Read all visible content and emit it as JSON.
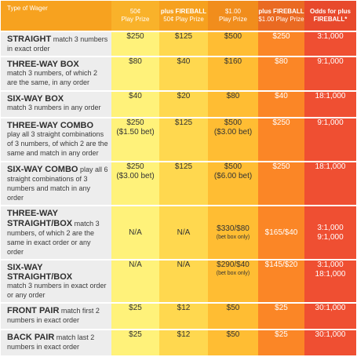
{
  "header": {
    "wager_type": "Type of Wager",
    "col1_line1": "50¢",
    "col1_line2": "Play Prize",
    "col2_line1": "plus FIREBALL",
    "col2_line2": "50¢ Play Prize",
    "col3_line1": "$1.00",
    "col3_line2": "Play Prize",
    "col4_line1": "plus FIREBALL",
    "col4_line2": "$1.00 Play Prize",
    "col5_line1": "Odds for plus",
    "col5_line2": "FIREBALL*"
  },
  "rows": [
    {
      "name": "STRAIGHT",
      "desc": " match 3 numbers in exact order",
      "p1": "$250",
      "p1b": "",
      "p2": "$125",
      "p3": "$500",
      "p3b": "",
      "p4": "$250",
      "odds1": "3:1,000",
      "odds2": ""
    },
    {
      "name": "THREE-WAY BOX",
      "desc": "match 3 numbers, of which 2 are the same, in any order",
      "p1": "$80",
      "p1b": "",
      "p2": "$40",
      "p3": "$160",
      "p3b": "",
      "p4": "$80",
      "odds1": "9:1,000",
      "odds2": ""
    },
    {
      "name": "SIX-WAY BOX",
      "desc": "match 3 numbers in any order",
      "p1": "$40",
      "p1b": "",
      "p2": "$20",
      "p3": "$80",
      "p3b": "",
      "p4": "$40",
      "odds1": "18:1,000",
      "odds2": ""
    },
    {
      "name": "THREE-WAY COMBO",
      "desc": "play all 3 straight combinations of 3 numbers, of which 2 are the same and match in any order",
      "p1": "$250",
      "p1b": "($1.50 bet)",
      "p2": "$125",
      "p3": "$500",
      "p3b": "($3.00 bet)",
      "p4": "$250",
      "odds1": "9:1,000",
      "odds2": ""
    },
    {
      "name": "SIX-WAY COMBO",
      "desc": " play all 6 straight combinations of 3 numbers and match in any order",
      "p1": "$250",
      "p1b": "($3.00 bet)",
      "p2": "$125",
      "p3": "$500",
      "p3b": "($6.00 bet)",
      "p4": "$250",
      "odds1": "18:1,000",
      "odds2": ""
    },
    {
      "name": "THREE-WAY STRAIGHT/BOX",
      "desc": " match 3 numbers, of which 2 are the same in exact order or any order",
      "p1": "N/A",
      "p1b": "",
      "p2": "N/A",
      "p3": "$330/$80",
      "p3b": "(bet box only)",
      "p4": "$165/$40",
      "odds1": "3:1,000",
      "odds2": "9:1,000"
    },
    {
      "name": "SIX-WAY STRAIGHT/BOX",
      "desc": "match 3 numbers in exact order or any order",
      "p1": "N/A",
      "p1b": "",
      "p2": "N/A",
      "p3": "$290/$40",
      "p3b": "(bet box only)",
      "p4": "$145/$20",
      "odds1": "3:1,000",
      "odds2": "18:1,000"
    },
    {
      "name": "FRONT PAIR",
      "desc": " match first 2 numbers in exact order",
      "p1": "$25",
      "p1b": "",
      "p2": "$12",
      "p3": "$50",
      "p3b": "",
      "p4": "$25",
      "odds1": "30:1,000",
      "odds2": ""
    },
    {
      "name": "BACK PAIR",
      "desc": " match last 2 numbers in exact order",
      "p1": "$25",
      "p1b": "",
      "p2": "$12",
      "p3": "$50",
      "p3b": "",
      "p4": "$25",
      "odds1": "30:1,000",
      "odds2": ""
    }
  ]
}
